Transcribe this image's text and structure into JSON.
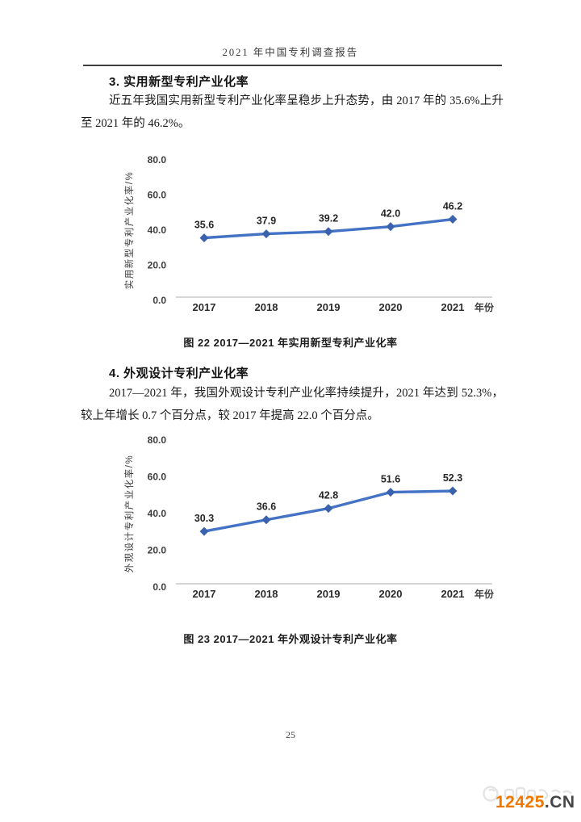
{
  "page": {
    "header_title": "2021 年中国专利调查报告",
    "page_number": "25"
  },
  "section3": {
    "heading": "3. 实用新型专利产业化率",
    "paragraph": "近五年我国实用新型专利产业化率呈稳步上升态势，由 2017 年的 35.6%上升至 2021 年的 46.2%。"
  },
  "section4": {
    "heading": "4. 外观设计专利产业化率",
    "paragraph": "2017—2021 年，我国外观设计专利产业化率持续提升，2021 年达到 52.3%，较上年增长 0.7 个百分点，较 2017 年提高 22.0 个百分点。"
  },
  "figure22": {
    "caption": "图 22  2017—2021 年实用新型专利产业化率"
  },
  "figure23": {
    "caption": "图 23  2017—2021 年外观设计专利产业化率"
  },
  "watermark": {
    "text_orange": "12425",
    "text_dark": ".CN",
    "orange_color": "#F07800",
    "dark_color": "#464646"
  },
  "chart_data": [
    {
      "type": "line",
      "categories": [
        "2017",
        "2018",
        "2019",
        "2020",
        "2021"
      ],
      "values": [
        35.6,
        37.9,
        39.2,
        42.0,
        46.2
      ],
      "title": "",
      "xlabel": "年份",
      "ylabel": "实用新型专利产业化率/%",
      "ylim": [
        0,
        80
      ],
      "yticks": [
        0,
        20,
        40,
        60,
        80
      ],
      "ytick_labels": [
        "0.0",
        "20.0",
        "40.0",
        "60.0",
        "80.0"
      ],
      "grid": false,
      "legend": "none",
      "data_labels": true,
      "line_color": "#4472C4",
      "marker": "diamond",
      "marker_color": "#3A62AD",
      "axis_color": "#C9C9C9"
    },
    {
      "type": "line",
      "categories": [
        "2017",
        "2018",
        "2019",
        "2020",
        "2021"
      ],
      "values": [
        30.3,
        36.6,
        42.8,
        51.6,
        52.3
      ],
      "title": "",
      "xlabel": "年份",
      "ylabel": "外观设计专利产业化率/%",
      "ylim": [
        0,
        80
      ],
      "yticks": [
        0,
        20,
        40,
        60,
        80
      ],
      "ytick_labels": [
        "0.0",
        "20.0",
        "40.0",
        "60.0",
        "80.0"
      ],
      "grid": false,
      "legend": "none",
      "data_labels": true,
      "line_color": "#4472C4",
      "marker": "diamond",
      "marker_color": "#3A62AD",
      "axis_color": "#C9C9C9"
    }
  ]
}
